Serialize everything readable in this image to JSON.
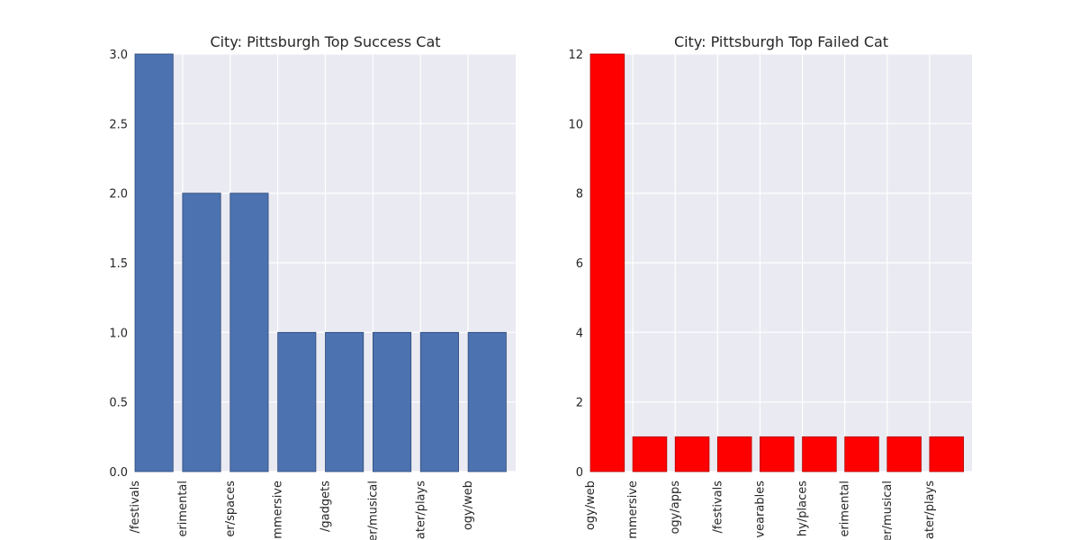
{
  "chart_data": [
    {
      "type": "bar",
      "title": "City: Pittsburgh Top Success Cat",
      "xlabel": "",
      "ylabel": "",
      "categories": [
        "/festivals",
        "erimental",
        "er/spaces",
        "mmersive",
        "/gadgets",
        "er/musical",
        "ater/plays",
        "ogy/web"
      ],
      "values": [
        3,
        2,
        2,
        1,
        1,
        1,
        1,
        1
      ],
      "ylim": [
        0,
        3.0
      ],
      "yticks": [
        "0.0",
        "0.5",
        "1.0",
        "1.5",
        "2.0",
        "2.5",
        "3.0"
      ],
      "bar_color": "#4c72b0",
      "bar_edge": "#2f4a7a",
      "grid": true
    },
    {
      "type": "bar",
      "title": "City: Pittsburgh Top Failed Cat",
      "xlabel": "",
      "ylabel": "",
      "categories": [
        "ogy/web",
        "mmersive",
        "ogy/apps",
        "/festivals",
        "vearables",
        "hy/places",
        "erimental",
        "er/musical",
        "ater/plays"
      ],
      "values": [
        12,
        1,
        1,
        1,
        1,
        1,
        1,
        1,
        1
      ],
      "ylim": [
        0,
        12
      ],
      "yticks": [
        "0",
        "2",
        "4",
        "6",
        "8",
        "10",
        "12"
      ],
      "bar_color": "#ff0000",
      "bar_edge": "#b00000",
      "grid": true
    }
  ]
}
